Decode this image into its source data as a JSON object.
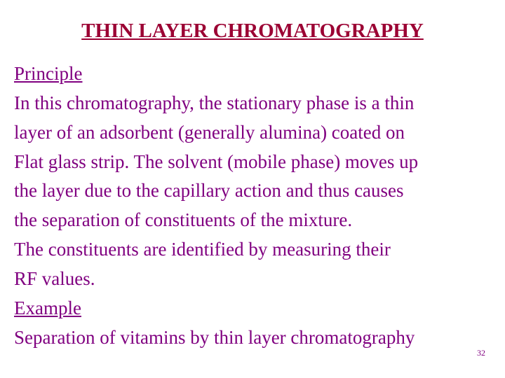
{
  "title": {
    "text": "THIN LAYER CHROMATOGRAPHY",
    "color": "#9b0033",
    "fontsize": 29
  },
  "body": {
    "principle_heading": "Principle",
    "principle_line1": "In this chromatography, the stationary phase is a thin",
    "principle_line2": "layer of an adsorbent (generally alumina) coated on",
    "principle_line3": "Flat glass strip. The solvent (mobile phase) moves up",
    "principle_line4": "the layer due to the capillary action and thus causes",
    "principle_line5": "the separation of constituents of the mixture.",
    "principle_line6": "The constituents are identified by measuring their",
    "principle_line7": "RF values.",
    "example_heading": "Example",
    "example_line1": "Separation of vitamins by thin layer chromatography",
    "color": "#800080",
    "fontsize": 27
  },
  "page_number": {
    "text": "32",
    "color": "#800080"
  },
  "background_color": "#ffffff"
}
